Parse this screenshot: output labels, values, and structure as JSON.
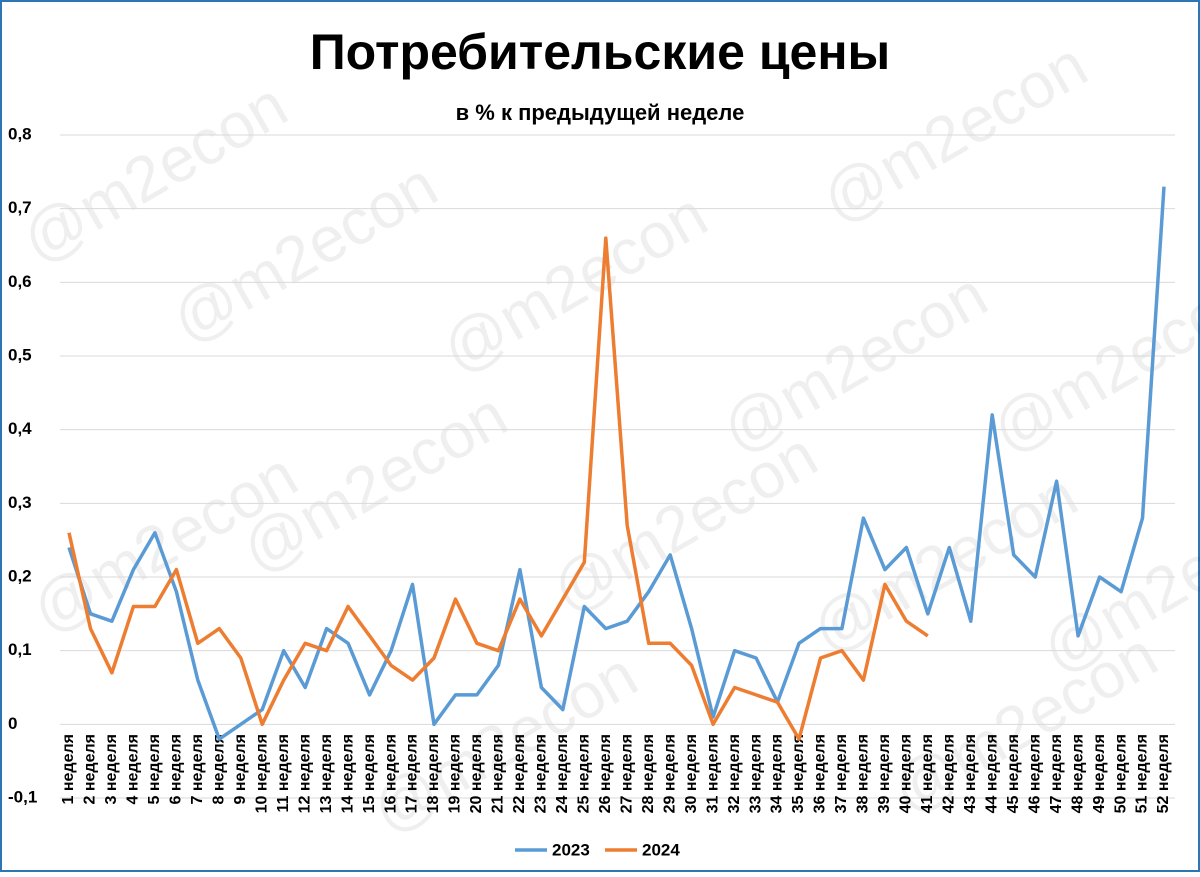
{
  "chart_data": {
    "type": "line",
    "title": "Потребительские цены",
    "subtitle": "в % к предыдущей неделе",
    "watermark": "@m2econ",
    "categories": [
      "1 неделя",
      "2 неделя",
      "3 неделя",
      "4 неделя",
      "5 неделя",
      "6 неделя",
      "7 неделя",
      "8 неделя",
      "9 неделя",
      "10 неделя",
      "11 неделя",
      "12 неделя",
      "13 неделя",
      "14 неделя",
      "15 неделя",
      "16 неделя",
      "17 неделя",
      "18 неделя",
      "19 неделя",
      "20 неделя",
      "21 неделя",
      "22 неделя",
      "23 неделя",
      "24 неделя",
      "25 неделя",
      "26 неделя",
      "27 неделя",
      "28 неделя",
      "29 неделя",
      "30 неделя",
      "31 неделя",
      "32 неделя",
      "33 неделя",
      "34 неделя",
      "35 неделя",
      "36 неделя",
      "37 неделя",
      "38 неделя",
      "39 неделя",
      "40 неделя",
      "41 неделя",
      "42 неделя",
      "43 неделя",
      "44 неделя",
      "45 неделя",
      "46 неделя",
      "47 неделя",
      "48 неделя",
      "49 неделя",
      "50 неделя",
      "51 неделя",
      "52 неделя"
    ],
    "series": [
      {
        "name": "2023",
        "color": "#5b9bd5",
        "values": [
          0.24,
          0.15,
          0.14,
          0.21,
          0.26,
          0.18,
          0.06,
          -0.02,
          0.0,
          0.02,
          0.1,
          0.05,
          0.13,
          0.11,
          0.04,
          0.1,
          0.19,
          0.0,
          0.04,
          0.04,
          0.08,
          0.21,
          0.05,
          0.02,
          0.16,
          0.13,
          0.14,
          0.18,
          0.23,
          0.13,
          0.01,
          0.1,
          0.09,
          0.03,
          0.11,
          0.13,
          0.13,
          0.28,
          0.21,
          0.24,
          0.15,
          0.24,
          0.14,
          0.42,
          0.23,
          0.2,
          0.33,
          0.12,
          0.2,
          0.18,
          0.28,
          0.73
        ]
      },
      {
        "name": "2024",
        "color": "#ed7d31",
        "values": [
          0.26,
          0.13,
          0.07,
          0.16,
          0.16,
          0.21,
          0.11,
          0.13,
          0.09,
          0.0,
          0.06,
          0.11,
          0.1,
          0.16,
          0.12,
          0.08,
          0.06,
          0.09,
          0.17,
          0.11,
          0.1,
          0.17,
          0.12,
          0.17,
          0.22,
          0.66,
          0.27,
          0.11,
          0.11,
          0.08,
          0.0,
          0.05,
          0.04,
          0.03,
          -0.02,
          0.09,
          0.1,
          0.06,
          0.19,
          0.14,
          0.12,
          null,
          null,
          null,
          null,
          null,
          null,
          null,
          null,
          null,
          null,
          null
        ]
      }
    ],
    "ylim": [
      -0.1,
      0.8
    ],
    "yticks": [
      {
        "value": -0.1,
        "label": "-0,1"
      },
      0,
      {
        "value": 0.1,
        "label": "0,1"
      },
      {
        "value": 0.2,
        "label": "0,2"
      },
      {
        "value": 0.3,
        "label": "0,3"
      },
      {
        "value": 0.4,
        "label": "0,4"
      },
      {
        "value": 0.5,
        "label": "0,5"
      },
      {
        "value": 0.6,
        "label": "0,6"
      },
      {
        "value": 0.7,
        "label": "0,7"
      },
      {
        "value": 0.8,
        "label": "0,8"
      }
    ],
    "grid": true,
    "legend": "bottom"
  }
}
